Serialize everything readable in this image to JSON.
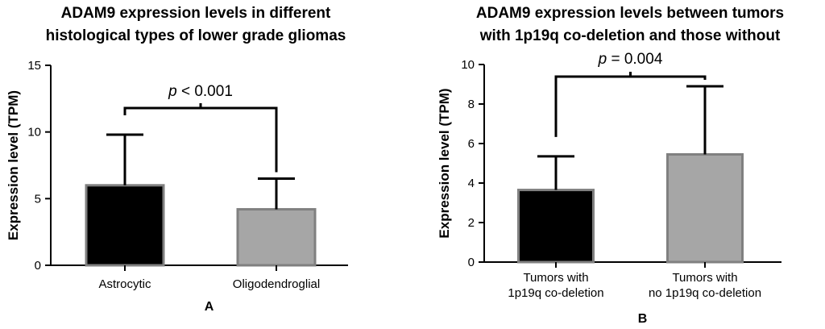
{
  "chart_data": [
    {
      "type": "bar",
      "panel_label": "A",
      "title_lines": [
        "ADAM9 expression levels in different",
        "histological types of lower grade gliomas"
      ],
      "ylabel": "Expression level (TPM)",
      "xlabel": "",
      "ylim": [
        0,
        15
      ],
      "yticks": [
        0,
        5,
        10,
        15
      ],
      "categories": [
        [
          "Astrocytic"
        ],
        [
          "Oligodendroglial"
        ]
      ],
      "values": [
        6.0,
        4.2
      ],
      "error_upper": [
        9.8,
        6.5
      ],
      "bar_colors": [
        "#000000",
        "#a6a6a6"
      ],
      "significance": {
        "prefix": "p",
        "text": " < 0.001"
      }
    },
    {
      "type": "bar",
      "panel_label": "B",
      "title_lines": [
        "ADAM9 expression levels between tumors",
        "with 1p19q co-deletion and those without"
      ],
      "ylabel": "Expression level (TPM)",
      "xlabel": "",
      "ylim": [
        0,
        10
      ],
      "yticks": [
        0,
        2,
        4,
        6,
        8,
        10
      ],
      "categories": [
        [
          "Tumors with",
          "1p19q co-deletion"
        ],
        [
          "Tumors with",
          "no 1p19q co-deletion"
        ]
      ],
      "values": [
        3.65,
        5.45
      ],
      "error_upper": [
        5.35,
        8.9
      ],
      "bar_colors": [
        "#000000",
        "#a6a6a6"
      ],
      "significance": {
        "prefix": "p",
        "text": " = 0.004"
      }
    }
  ]
}
